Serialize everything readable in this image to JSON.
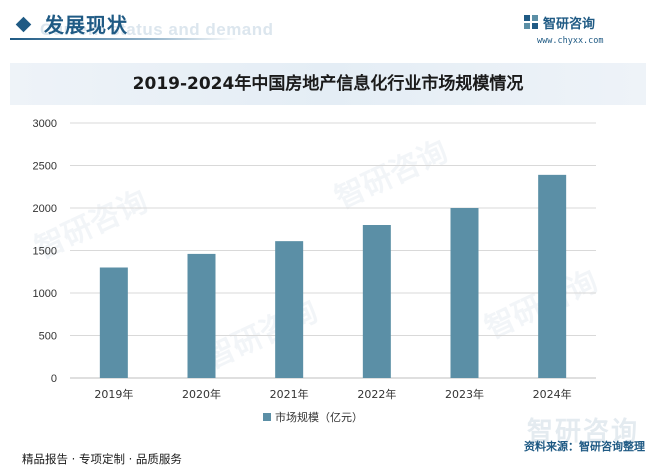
{
  "header": {
    "title": "发展现状",
    "subtitle_bg": "Current status and demand"
  },
  "brand": {
    "name": "智研咨询",
    "url": "www.chyxx.com",
    "watermark_text": "智研咨询"
  },
  "colors": {
    "accent": "#1f5a84",
    "bar": "#5b8fa6",
    "grid": "#d9d9d9"
  },
  "chart_data": {
    "type": "bar",
    "title": "2019-2024年中国房地产信息化行业市场规模情况",
    "categories": [
      "2019年",
      "2020年",
      "2021年",
      "2022年",
      "2023年",
      "2024年"
    ],
    "series": [
      {
        "name": "市场规模（亿元）",
        "values": [
          1300,
          1460,
          1610,
          1800,
          2000,
          2390
        ]
      }
    ],
    "ylim": [
      0,
      3000
    ],
    "yticks": [
      0,
      500,
      1000,
      1500,
      2000,
      2500,
      3000
    ],
    "xlabel": "",
    "ylabel": "",
    "grid": true,
    "legend_position": "bottom"
  },
  "footer": {
    "left": "精品报告 · 专项定制 · 品质服务",
    "source": "资料来源：智研咨询整理"
  }
}
